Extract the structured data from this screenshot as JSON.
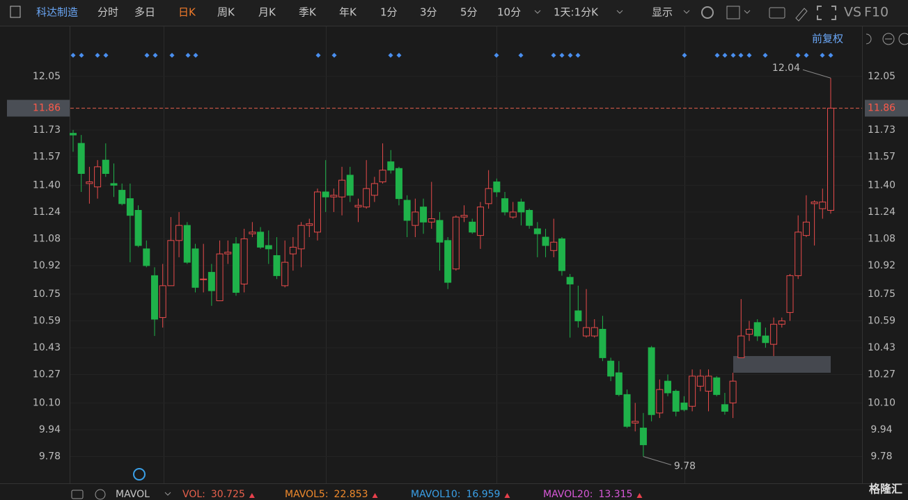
{
  "toolbar": {
    "stock": "科达制造",
    "tabs": [
      "分时",
      "多日",
      "日K",
      "周K",
      "月K",
      "季K",
      "年K",
      "1分",
      "3分",
      "5分",
      "10分"
    ],
    "period": "1天:1分K",
    "display": "显示",
    "vs": "VS",
    "f10": "F10",
    "adjust": "前复权"
  },
  "chart_data": {
    "type": "candlestick",
    "up_color": "#e84b4b",
    "down_color": "#1fb24a",
    "open": [
      11.71,
      11.65,
      11.41,
      11.39,
      11.55,
      11.41,
      11.37,
      11.32,
      11.25,
      11.02,
      10.86,
      10.61,
      10.8,
      11.07,
      11.16,
      11.02,
      10.84,
      10.88,
      10.71,
      10.99,
      11.05,
      10.81,
      11.11,
      11.12,
      11.04,
      10.98,
      10.8,
      10.99,
      11.02,
      11.16,
      11.12,
      11.36,
      11.33,
      11.33,
      11.46,
      11.27,
      11.27,
      11.34,
      11.42,
      11.54,
      11.5,
      11.31,
      11.16,
      11.27,
      11.18,
      11.19,
      11.07,
      10.9,
      11.21,
      11.18,
      11.1,
      11.29,
      11.42,
      11.32,
      11.21,
      11.3,
      11.25,
      11.14,
      11.09,
      11.01,
      11.08,
      10.85,
      10.65,
      10.5,
      10.5,
      10.54,
      10.35,
      10.28,
      10.15,
      9.98,
      9.95,
      10.43,
      10.04,
      10.23,
      10.17,
      10.1,
      10.08,
      10.2,
      10.17,
      10.25,
      10.09,
      10.1,
      10.37,
      10.51,
      10.58,
      10.5,
      10.45,
      10.57,
      10.64,
      10.86,
      11.1,
      11.29,
      11.26,
      11.25
    ],
    "high": [
      11.73,
      11.7,
      11.51,
      11.55,
      11.65,
      11.53,
      11.41,
      11.41,
      11.28,
      11.07,
      10.91,
      10.93,
      11.21,
      11.24,
      11.18,
      11.05,
      11.05,
      10.93,
      11.07,
      11.07,
      11.09,
      11.14,
      11.18,
      11.15,
      11.13,
      11.09,
      11.07,
      11.09,
      11.18,
      11.2,
      11.38,
      11.55,
      11.38,
      11.51,
      11.51,
      11.32,
      11.55,
      11.45,
      11.65,
      11.61,
      11.51,
      11.34,
      11.32,
      11.32,
      11.42,
      11.24,
      11.09,
      11.22,
      11.28,
      11.2,
      11.3,
      11.49,
      11.44,
      11.36,
      11.3,
      11.32,
      11.26,
      11.18,
      11.14,
      11.2,
      11.09,
      10.87,
      10.8,
      10.78,
      10.6,
      10.62,
      10.37,
      10.35,
      10.18,
      10.1,
      10.04,
      10.44,
      10.24,
      10.27,
      10.18,
      10.14,
      10.3,
      10.3,
      10.3,
      10.26,
      10.16,
      10.28,
      10.72,
      10.59,
      10.6,
      10.55,
      10.61,
      10.61,
      10.87,
      11.22,
      11.34,
      11.31,
      11.38,
      12.04
    ],
    "low": [
      11.6,
      11.36,
      11.29,
      11.32,
      11.45,
      11.33,
      11.28,
      10.94,
      11.03,
      10.91,
      10.5,
      10.55,
      10.8,
      10.97,
      10.93,
      10.76,
      10.76,
      10.68,
      10.71,
      10.93,
      10.74,
      10.76,
      11.09,
      11.02,
      10.93,
      10.84,
      10.79,
      10.89,
      10.91,
      11.09,
      11.07,
      11.24,
      11.24,
      11.22,
      11.3,
      11.18,
      11.26,
      11.3,
      11.41,
      11.47,
      11.28,
      11.09,
      11.09,
      11.11,
      11.14,
      10.89,
      10.78,
      10.89,
      11.18,
      11.11,
      11.02,
      11.26,
      11.33,
      11.22,
      11.2,
      11.16,
      11.14,
      10.97,
      10.97,
      10.97,
      10.86,
      10.49,
      10.55,
      10.49,
      10.49,
      10.35,
      10.23,
      10.14,
      9.95,
      9.93,
      9.78,
      9.99,
      10.01,
      10.14,
      10.02,
      10.05,
      10.05,
      10.17,
      10.05,
      10.14,
      10.03,
      10.01,
      10.37,
      10.47,
      10.47,
      10.43,
      10.38,
      10.55,
      10.59,
      10.84,
      11.09,
      11.04,
      11.2,
      11.23
    ],
    "close": [
      11.7,
      11.47,
      11.42,
      11.51,
      11.47,
      11.4,
      11.29,
      11.22,
      11.04,
      10.92,
      10.6,
      10.8,
      11.07,
      11.16,
      10.94,
      10.79,
      10.84,
      10.77,
      10.99,
      11.0,
      10.76,
      11.08,
      11.12,
      11.03,
      11.02,
      10.86,
      10.94,
      11.03,
      11.16,
      11.17,
      11.36,
      11.33,
      11.34,
      11.43,
      11.34,
      11.28,
      11.38,
      11.41,
      11.49,
      11.49,
      11.32,
      11.19,
      11.24,
      11.18,
      11.2,
      11.06,
      10.82,
      11.21,
      11.22,
      11.12,
      11.27,
      11.38,
      11.36,
      11.24,
      11.24,
      11.24,
      11.16,
      11.11,
      11.04,
      11.06,
      10.89,
      10.81,
      10.59,
      10.55,
      10.55,
      10.37,
      10.26,
      10.15,
      9.96,
      9.99,
      9.85,
      10.03,
      10.18,
      10.16,
      10.05,
      10.06,
      10.26,
      10.26,
      10.26,
      10.15,
      10.05,
      10.23,
      10.5,
      10.54,
      10.5,
      10.46,
      10.57,
      10.59,
      10.86,
      11.12,
      11.18,
      11.3,
      11.3,
      11.86
    ],
    "ylim": [
      9.62,
      12.34
    ],
    "yticks": [
      12.05,
      11.73,
      11.57,
      {
        "value": 11.4,
        "label": "11.40"
      },
      11.24,
      11.08,
      10.92,
      10.75,
      10.59,
      10.43,
      10.27,
      {
        "value": 10.1,
        "label": "10.10"
      },
      9.94,
      9.78
    ],
    "last_price": 11.86,
    "max_label": 12.04,
    "min_label": 9.78
  },
  "indicator_bar": {
    "selector": "MAVOL",
    "items": [
      {
        "name": "VOL:",
        "value": 30.725,
        "color": "#e8604c"
      },
      {
        "name": "MAVOL5:",
        "value": 22.853,
        "color": "#f08a2c"
      },
      {
        "name": "MAVOL10:",
        "value": 16.959,
        "color": "#3aa0e8"
      },
      {
        "name": "MAVOL20:",
        "value": 13.315,
        "color": "#d858d8"
      }
    ]
  },
  "brand": "格隆汇"
}
